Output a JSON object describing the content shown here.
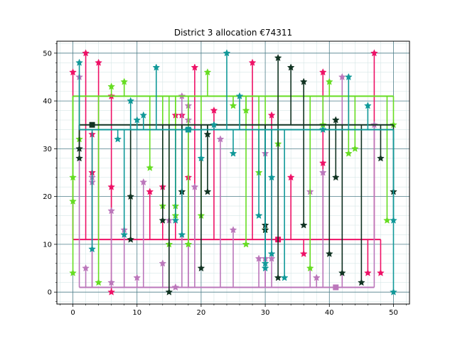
{
  "chart_data": {
    "type": "stem",
    "title": "District 3 allocation €74311",
    "xlabel": "",
    "ylabel": "",
    "xlim": [
      -2.5,
      52.5
    ],
    "ylim": [
      -2.5,
      52.5
    ],
    "xticks": [
      0,
      10,
      20,
      30,
      40,
      50
    ],
    "yticks": [
      0,
      10,
      20,
      30,
      40,
      50
    ],
    "grid": true,
    "minor_grid": true,
    "legend": "none",
    "series": [
      {
        "color": "#ee1166",
        "baseline": 11,
        "x": [
          0,
          2,
          3,
          3,
          4,
          6,
          6,
          6,
          12,
          14,
          16,
          17,
          18,
          19,
          22,
          28,
          31,
          34,
          36,
          39,
          39,
          46,
          47,
          48
        ],
        "y": [
          46,
          50,
          33,
          25,
          48,
          22,
          0,
          41,
          21,
          22,
          37,
          37,
          24,
          47,
          38,
          48,
          37,
          24,
          8,
          46,
          27,
          4,
          50,
          4
        ],
        "marker_point": [
          32,
          11
        ]
      },
      {
        "color": "#bb77bb",
        "baseline": 1,
        "x": [
          1,
          2,
          3,
          3,
          6,
          6,
          8,
          10,
          11,
          14,
          15,
          16,
          17,
          18,
          18,
          19,
          23,
          25,
          29,
          30,
          30,
          31,
          37,
          38,
          39,
          42,
          47
        ],
        "y": [
          45,
          5,
          24,
          23,
          17,
          2,
          13,
          3,
          23,
          6,
          15,
          1,
          41,
          39,
          36,
          22,
          32,
          13,
          7,
          7,
          29,
          7,
          21,
          3,
          25,
          45,
          35
        ],
        "marker_point": [
          41,
          1
        ]
      },
      {
        "color": "#66dd22",
        "baseline": 41,
        "x": [
          0,
          0,
          0,
          1,
          4,
          6,
          8,
          12,
          14,
          15,
          16,
          16,
          18,
          20,
          21,
          25,
          27,
          27,
          29,
          30,
          32,
          37,
          39,
          40,
          43,
          44,
          49,
          50
        ],
        "y": [
          4,
          19,
          24,
          32,
          2,
          43,
          44,
          26,
          18,
          10,
          16,
          18,
          10,
          16,
          46,
          39,
          10,
          38,
          25,
          13,
          31,
          5,
          35,
          44,
          29,
          30,
          15,
          35
        ]
      },
      {
        "color": "#113322",
        "baseline": 35,
        "x": [
          1,
          1,
          9,
          9,
          14,
          15,
          17,
          17,
          20,
          21,
          21,
          30,
          30,
          32,
          32,
          34,
          36,
          36,
          40,
          41,
          41,
          42,
          45,
          48,
          50
        ],
        "y": [
          28,
          30,
          20,
          11,
          15,
          0,
          21,
          21,
          5,
          21,
          33,
          14,
          13,
          49,
          3,
          47,
          44,
          14,
          8,
          36,
          24,
          4,
          2,
          28,
          21
        ],
        "marker_point": [
          3,
          35
        ]
      },
      {
        "color": "#119999",
        "baseline": 34,
        "x": [
          1,
          3,
          7,
          9,
          11,
          13,
          16,
          18,
          20,
          22,
          24,
          25,
          26,
          29,
          30,
          30,
          31,
          33,
          39,
          43,
          46,
          50
        ],
        "y": [
          48,
          9,
          32,
          40,
          37,
          47,
          15,
          34,
          28,
          35,
          50,
          29,
          41,
          16,
          5,
          6,
          8,
          3,
          34,
          45,
          39,
          15
        ],
        "marker_point": [
          18,
          34
        ]
      },
      {
        "color": "#119999",
        "baseline": 34,
        "x": [
          8,
          10,
          17,
          31,
          50
        ],
        "y": [
          12,
          36,
          12,
          24,
          0
        ]
      }
    ]
  }
}
